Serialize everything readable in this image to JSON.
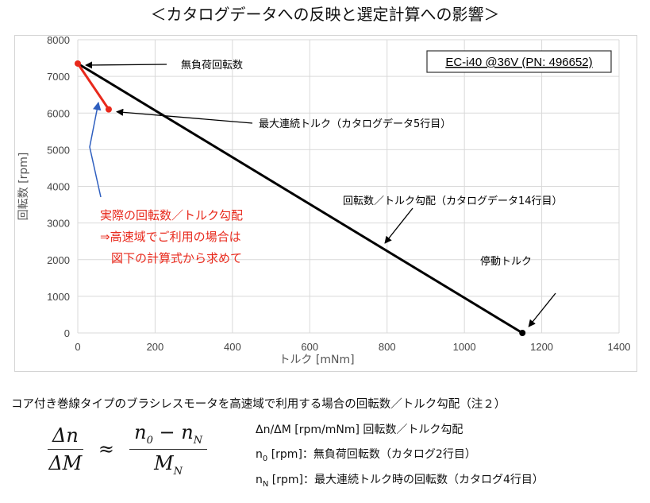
{
  "page": {
    "title": "＜カタログデータへの反映と選定計算への影響＞"
  },
  "chart_data": {
    "type": "line",
    "title": "",
    "xlabel": "トルク [mNm]",
    "ylabel": "回転数 [rpm]",
    "xlim": [
      0,
      1400
    ],
    "ylim": [
      0,
      8000
    ],
    "xticks": [
      0,
      200,
      400,
      600,
      800,
      1000,
      1200,
      1400
    ],
    "yticks": [
      0,
      1000,
      2000,
      3000,
      4000,
      5000,
      6000,
      7000,
      8000
    ],
    "grid": true,
    "series": [
      {
        "color": "#000000",
        "points": [
          [
            0,
            7350
          ],
          [
            1150,
            0
          ]
        ]
      },
      {
        "color": "#e8291c",
        "points": [
          [
            0,
            7350
          ],
          [
            80,
            6100
          ]
        ]
      }
    ],
    "markers": [
      {
        "x": 0,
        "y": 7350,
        "color": "#e8291c"
      },
      {
        "x": 80,
        "y": 6100,
        "color": "#e8291c"
      },
      {
        "x": 1150,
        "y": 0,
        "color": "#000000"
      }
    ],
    "info_box": "EC-i40 @36V (PN: 496652)",
    "annotations": {
      "no_load": "無負荷回転数",
      "max_torque": "最大連続トルク（カタログデータ5行目）",
      "gradient": "回転数／トルク勾配（カタログデータ14行目）",
      "stall": "停動トルク",
      "red_note": [
        "実際の回転数／トルク勾配",
        "⇒高速域でご利用の場合は",
        "図下の計算式から求めて"
      ]
    }
  },
  "footnote": "コア付き巻線タイプのブラシレスモータを高速域で利用する場合の回転数／トルク勾配（注２）",
  "formula": {
    "num_left": "Δn",
    "den_left": "ΔM",
    "approx": "≈",
    "num_right_a": "n",
    "num_right_a_sub": "0",
    "num_right_minus": " − ",
    "num_right_b": "n",
    "num_right_b_sub": "N",
    "den_right": "M",
    "den_right_sub": "N"
  },
  "definitions": [
    {
      "symbol": "Δn/ΔM",
      "sub": "",
      "unit": " [rpm/mNm] ",
      "desc": "回転数／トルク勾配"
    },
    {
      "symbol": "n",
      "sub": "0",
      "unit": " [rpm]：",
      "desc": "無負荷回転数（カタログ2行目）"
    },
    {
      "symbol": "n",
      "sub": "N",
      "unit": " [rpm]：",
      "desc": "最大連続トルク時の回転数（カタログ4行目）"
    }
  ],
  "colors": {
    "accent_red": "#e8291c",
    "arrow_blue": "#2f5fbf",
    "grid": "#d9d9d9",
    "axis_text": "#444444"
  }
}
